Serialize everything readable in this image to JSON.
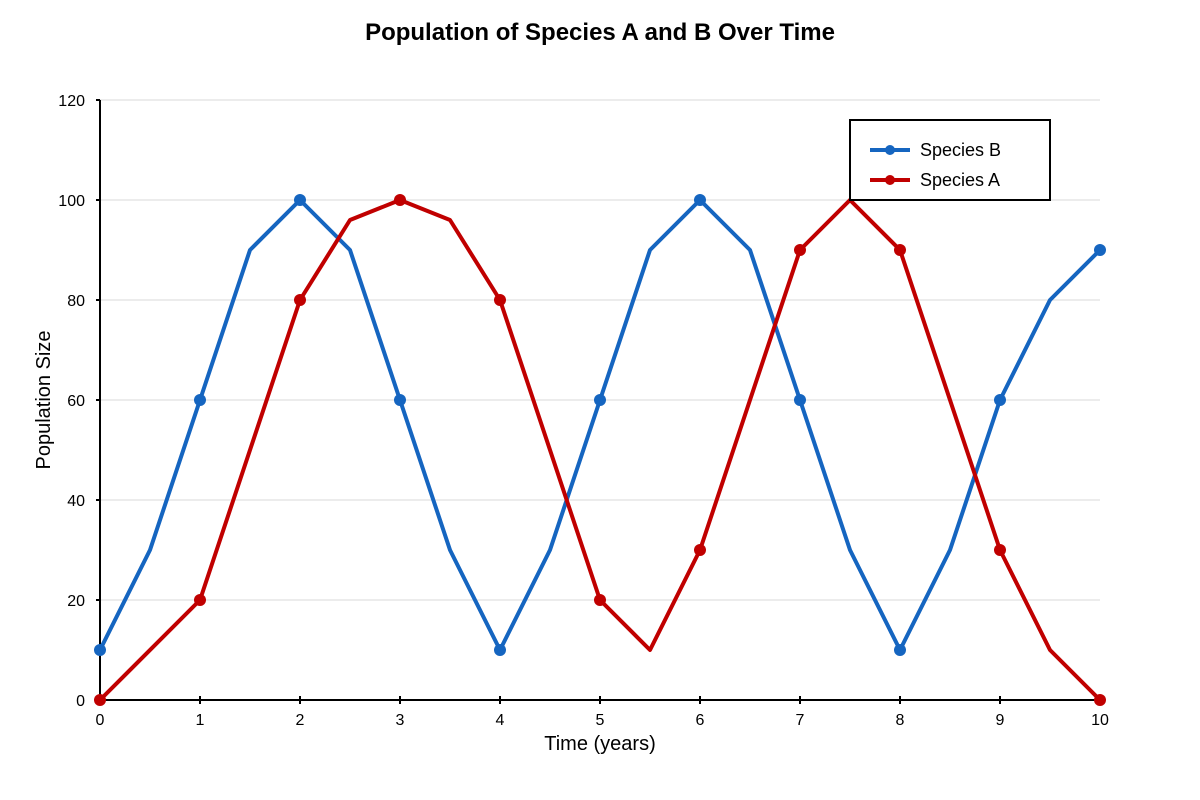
{
  "chart_data": {
    "type": "line",
    "title": "Population of Species A and B Over Time",
    "xlabel": "Time (years)",
    "ylabel": "Population Size",
    "xlim": [
      0,
      10
    ],
    "ylim": [
      0,
      120
    ],
    "x_ticks": [
      "0",
      "1",
      "2",
      "3",
      "4",
      "5",
      "6",
      "7",
      "8",
      "9",
      "10"
    ],
    "y_ticks": [
      "0",
      "20",
      "40",
      "60",
      "80",
      "100",
      "120"
    ],
    "grid": true,
    "legend_position": "top-right",
    "series": [
      {
        "name": "Species B",
        "color": "#1565c0",
        "points": [
          [
            0,
            10
          ],
          [
            0.5,
            30
          ],
          [
            1,
            60
          ],
          [
            1.5,
            90
          ],
          [
            2,
            100
          ],
          [
            2.5,
            90
          ],
          [
            3,
            60
          ],
          [
            3.5,
            30
          ],
          [
            4,
            10
          ],
          [
            4.5,
            30
          ],
          [
            5,
            60
          ],
          [
            5.5,
            90
          ],
          [
            6,
            100
          ],
          [
            6.5,
            90
          ],
          [
            7,
            60
          ],
          [
            7.5,
            30
          ],
          [
            8,
            10
          ],
          [
            8.5,
            30
          ],
          [
            9,
            60
          ],
          [
            9.5,
            80
          ],
          [
            10,
            90
          ]
        ],
        "marker_x": [
          0,
          1,
          2,
          3,
          4,
          5,
          6,
          7,
          8,
          9,
          10
        ]
      },
      {
        "name": "Species A",
        "color": "#c00000",
        "points": [
          [
            0,
            0
          ],
          [
            1,
            20
          ],
          [
            1.5,
            50
          ],
          [
            2,
            80
          ],
          [
            2.5,
            96
          ],
          [
            3,
            100
          ],
          [
            3.5,
            96
          ],
          [
            4,
            80
          ],
          [
            4.5,
            50
          ],
          [
            5,
            20
          ],
          [
            5.5,
            10
          ],
          [
            6,
            30
          ],
          [
            6.5,
            60
          ],
          [
            7,
            90
          ],
          [
            7.5,
            100
          ],
          [
            8,
            90
          ],
          [
            8.5,
            60
          ],
          [
            9,
            30
          ],
          [
            9.5,
            10
          ],
          [
            10,
            0
          ]
        ],
        "marker_x": [
          0,
          1,
          2,
          3,
          4,
          5,
          6,
          7,
          8,
          9,
          10
        ]
      }
    ]
  }
}
